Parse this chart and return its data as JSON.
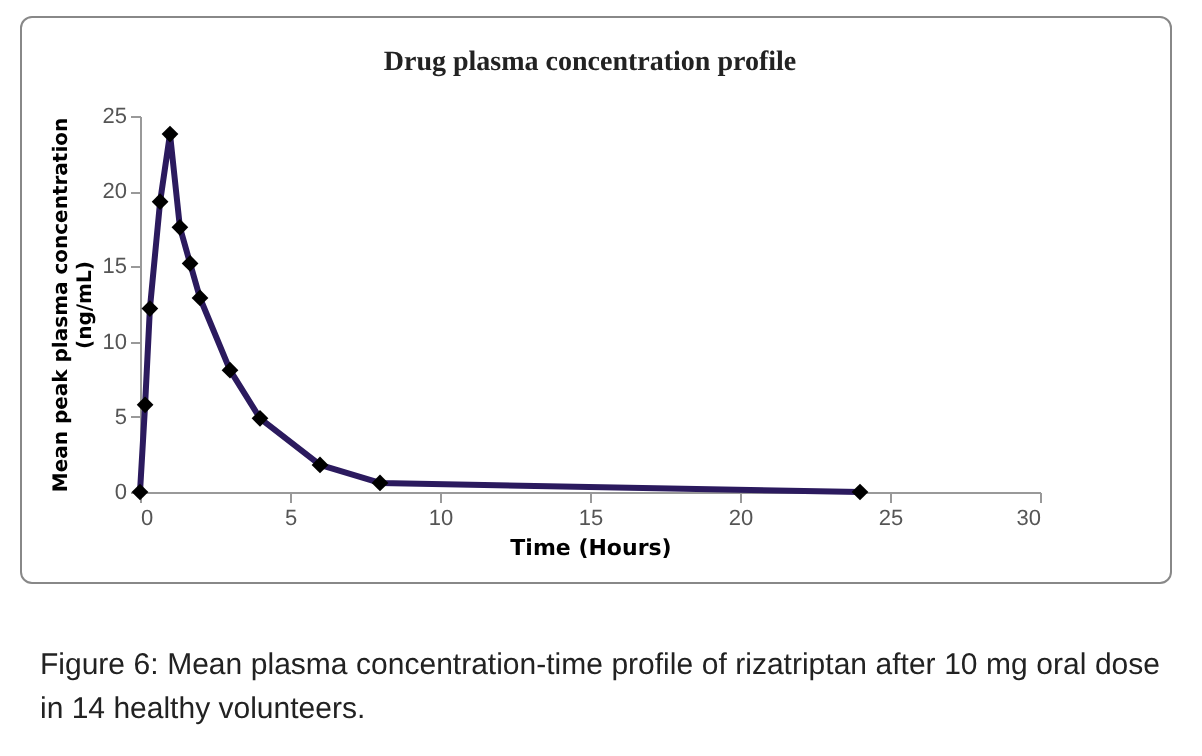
{
  "chart_data": {
    "type": "line",
    "title": "Drug plasma concentration profile",
    "xlabel": "Time (Hours)",
    "ylabel": "Mean peak plasma concentration (ng/mL)",
    "x": [
      0,
      0.17,
      0.33,
      0.67,
      1,
      1.33,
      1.67,
      2,
      3,
      4,
      6,
      8,
      24
    ],
    "series": [
      {
        "color": "#2b1a5e",
        "values": [
          0,
          5.8,
          12.2,
          19.3,
          23.8,
          17.6,
          15.2,
          12.9,
          8.1,
          4.9,
          1.8,
          0.6,
          0
        ]
      }
    ],
    "xlim": [
      0,
      30
    ],
    "xticks": [
      0,
      5,
      10,
      15,
      20,
      25,
      30
    ],
    "ylim": [
      0,
      25
    ],
    "yticks": [
      0,
      5,
      10,
      15,
      20,
      25
    ],
    "grid": false,
    "marker": "diamond",
    "line_style": "solid",
    "annotations": [
      "Figure 6: Mean plasma concentration-time profile of rizatriptan after 10 mg oral dose in 14 healthy volunteers."
    ]
  }
}
